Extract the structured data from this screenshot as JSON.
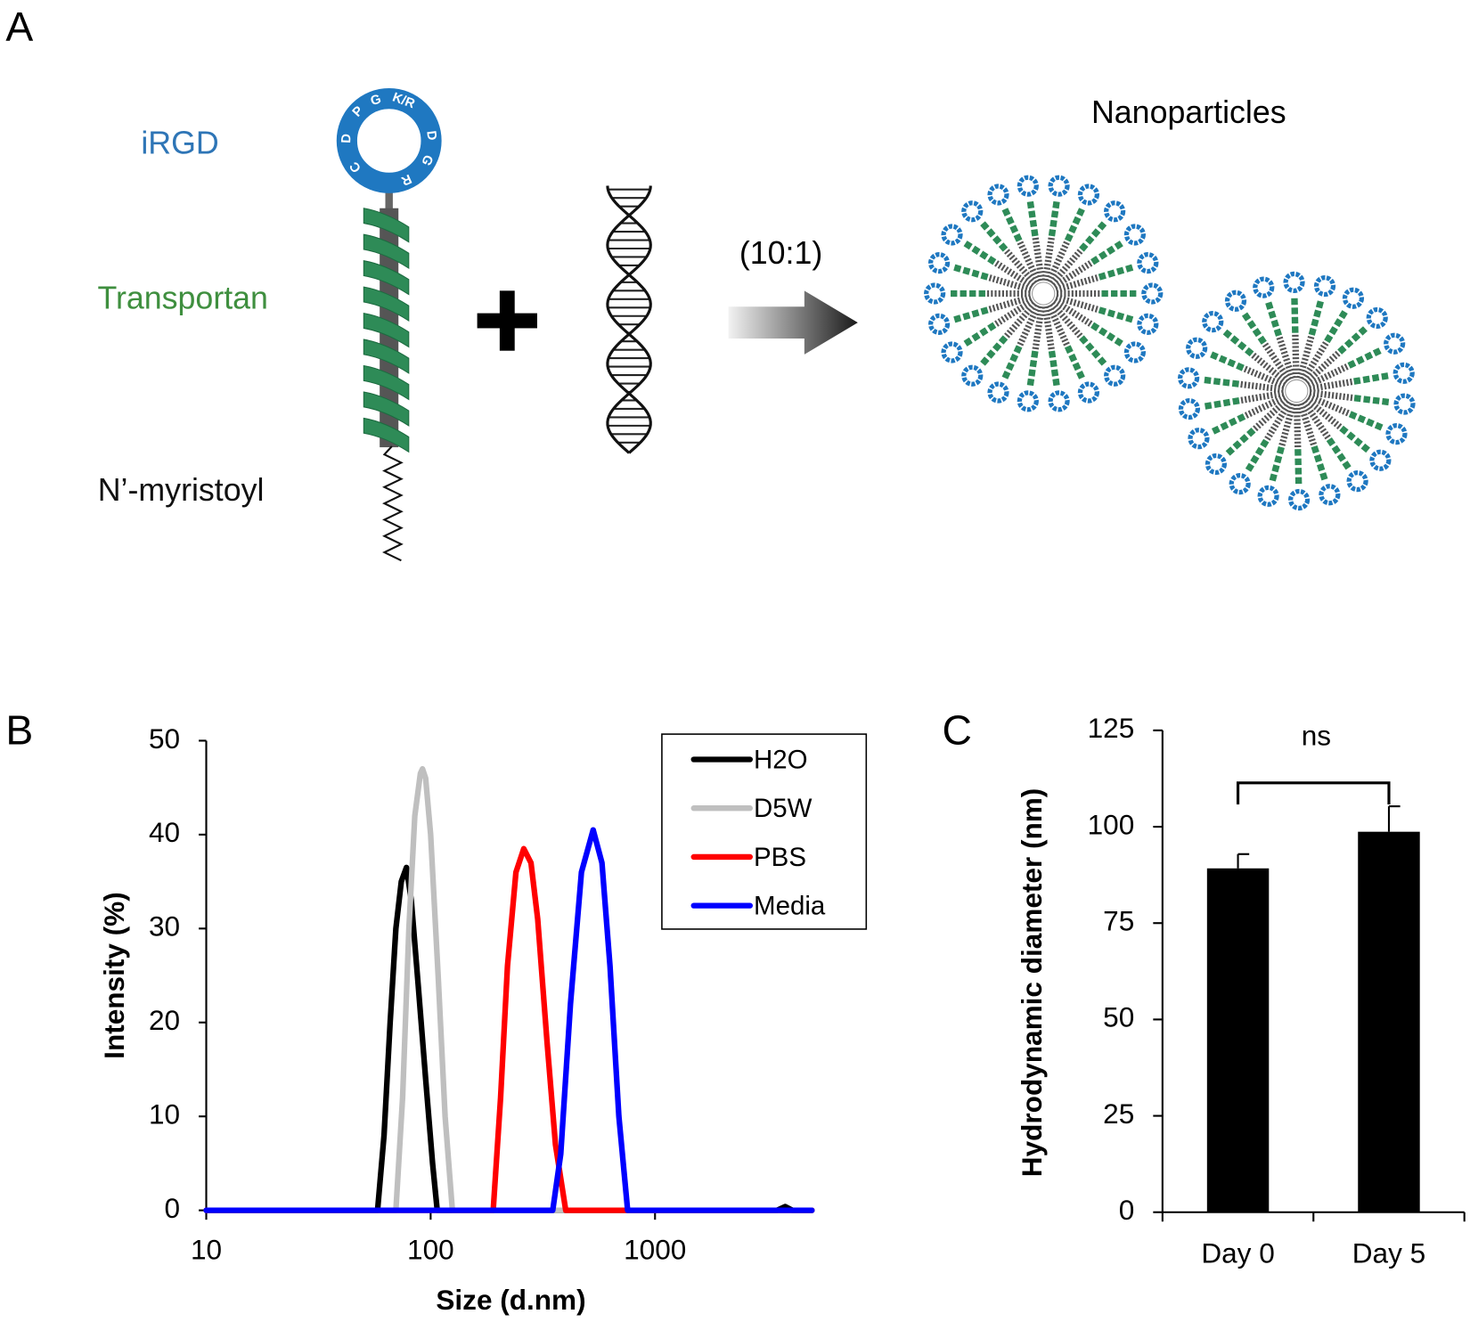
{
  "panel_a": {
    "label": "A",
    "ring_letters": [
      "C",
      "D",
      "P",
      "G",
      "K/R",
      "D",
      "G",
      "R"
    ],
    "irgd": "iRGD",
    "transportan": "Transportan",
    "lipid": "N’-myristoyl",
    "ratio": "(10:1)",
    "product": "Nanoparticles"
  },
  "chart_data": [
    {
      "panel_label": "B",
      "type": "line",
      "xlabel": "Size (d.nm)",
      "ylabel": "Intensity (%)",
      "xscale": "log",
      "xlim": [
        10,
        5000
      ],
      "xticks": [
        10,
        100,
        1000
      ],
      "ylim": [
        0,
        50
      ],
      "yticks": [
        0,
        10,
        20,
        30,
        40,
        50
      ],
      "legend": "upper right",
      "series": [
        {
          "name": "H2O",
          "color": "#000000",
          "x": [
            10,
            58,
            62,
            66,
            70,
            74,
            78,
            82,
            88,
            95,
            102,
            107,
            3000,
            3500,
            3800,
            4100,
            5000
          ],
          "values": [
            0,
            0,
            8,
            20,
            30,
            35,
            36.5,
            33,
            24,
            14,
            5,
            0,
            0,
            0,
            0.4,
            0,
            0
          ]
        },
        {
          "name": "D5W",
          "color": "#bfbfbf",
          "x": [
            10,
            70,
            75,
            80,
            85,
            90,
            92,
            95,
            100,
            108,
            116,
            125,
            5000
          ],
          "values": [
            0,
            0,
            12,
            30,
            42,
            46.5,
            47,
            46,
            40,
            25,
            10,
            0,
            0
          ]
        },
        {
          "name": "PBS",
          "color": "#ff0000",
          "x": [
            10,
            190,
            205,
            220,
            240,
            260,
            280,
            300,
            330,
            360,
            400,
            5000
          ],
          "values": [
            0,
            0,
            12,
            26,
            36,
            38.5,
            37,
            31,
            18,
            7,
            0,
            0
          ]
        },
        {
          "name": "Media",
          "color": "#0000ff",
          "x": [
            10,
            350,
            380,
            420,
            470,
            530,
            580,
            630,
            690,
            755,
            5000
          ],
          "values": [
            0,
            0,
            6,
            22,
            36,
            40.5,
            37,
            26,
            10,
            0,
            0
          ]
        }
      ]
    },
    {
      "panel_label": "C",
      "type": "bar",
      "ylabel": "Hydrodynamic diameter (nm)",
      "categories": [
        "Day 0",
        "Day 5"
      ],
      "values": [
        89.2,
        98.7
      ],
      "errors": [
        3.7,
        6.6
      ],
      "color": "#000000",
      "ylim": [
        0,
        125
      ],
      "yticks": [
        0,
        25,
        50,
        75,
        100,
        125
      ],
      "annotation": "ns"
    }
  ]
}
